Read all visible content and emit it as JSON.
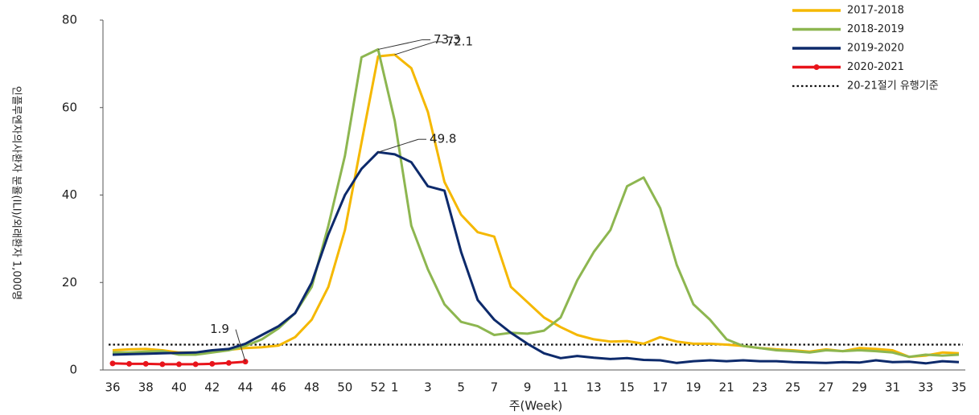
{
  "chart_data": {
    "type": "line",
    "y_label": "인플루엔자의사환자 분율(ILI)/외래환자 1,000명",
    "x_label": "주(Week)",
    "categories": [
      "36",
      null,
      "38",
      null,
      "40",
      null,
      "42",
      null,
      "44",
      null,
      "46",
      null,
      "48",
      null,
      "50",
      null,
      "52",
      "1",
      null,
      "3",
      null,
      "5",
      null,
      "7",
      null,
      "9",
      null,
      "11",
      null,
      "13",
      null,
      "15",
      null,
      "17",
      null,
      "19",
      null,
      "21",
      null,
      "23",
      null,
      "25",
      null,
      "27",
      null,
      "29",
      null,
      "31",
      null,
      "33",
      null,
      "35"
    ],
    "ylim": [
      0,
      80
    ],
    "yticks": [
      0,
      20,
      40,
      60,
      80
    ],
    "grid": false,
    "legend": "top-right",
    "series": [
      {
        "name": "2017-2018",
        "color": "#f5b800",
        "values": [
          4.5,
          4.7,
          4.8,
          4.5,
          4,
          4,
          4.3,
          4.6,
          5,
          5.2,
          5.6,
          7.5,
          11.5,
          19,
          32,
          52,
          71.7,
          72.1,
          69,
          59,
          43,
          35.5,
          31.5,
          30.5,
          19,
          15.5,
          12,
          9.8,
          8,
          7,
          6.5,
          6.6,
          6,
          7.5,
          6.5,
          6,
          6,
          5.8,
          5.5,
          5,
          4.7,
          4.5,
          4.2,
          4.7,
          4.3,
          5,
          4.8,
          4.5,
          3,
          3.3,
          4,
          3.8
        ]
      },
      {
        "name": "2018-2019",
        "color": "#8db650",
        "values": [
          4,
          4,
          4.2,
          4.3,
          3.5,
          3.5,
          4,
          4.5,
          5.5,
          7,
          9.5,
          13,
          19,
          33,
          49,
          71.5,
          73.3,
          57,
          33,
          23,
          15,
          11,
          10,
          8,
          8.5,
          8.3,
          9,
          12,
          20.5,
          27,
          32,
          42,
          44,
          37,
          24,
          15,
          11.5,
          7,
          5.5,
          5,
          4.5,
          4.3,
          4,
          4.5,
          4.3,
          4.5,
          4.3,
          4,
          3,
          3.5,
          3.3,
          3.5
        ]
      },
      {
        "name": "2019-2020",
        "color": "#0d2a6b",
        "values": [
          3.5,
          3.6,
          3.7,
          3.8,
          3.9,
          4,
          4.5,
          4.8,
          6,
          8,
          10,
          13,
          20,
          31,
          40,
          46,
          49.8,
          49.3,
          47.5,
          42,
          41,
          27,
          16,
          11.5,
          8.5,
          6,
          3.8,
          2.7,
          3.2,
          2.8,
          2.5,
          2.7,
          2.3,
          2.2,
          1.6,
          2,
          2.2,
          2,
          2.2,
          2,
          2,
          1.8,
          1.7,
          1.6,
          1.8,
          1.7,
          2.2,
          1.8,
          1.9,
          1.5,
          2,
          1.8
        ]
      },
      {
        "name": "2020-2021",
        "color": "#e8141b",
        "marker": true,
        "values": [
          1.5,
          1.4,
          1.4,
          1.3,
          1.3,
          1.3,
          1.4,
          1.6,
          1.9,
          null,
          null,
          null,
          null,
          null,
          null,
          null,
          null,
          null,
          null,
          null,
          null,
          null,
          null,
          null,
          null,
          null,
          null,
          null,
          null,
          null,
          null,
          null,
          null,
          null,
          null,
          null,
          null,
          null,
          null,
          null,
          null,
          null,
          null,
          null,
          null,
          null,
          null,
          null,
          null,
          null,
          null,
          null
        ]
      }
    ],
    "threshold": {
      "name": "20-21절기 유행기준",
      "value": 5.8,
      "color": "#111"
    },
    "annotations": [
      {
        "text": "73.3",
        "x": "52",
        "y": 73.3
      },
      {
        "text": "72.1",
        "x": "1",
        "y": 72.1
      },
      {
        "text": "49.8",
        "x": "52",
        "y": 49.8
      },
      {
        "text": "1.9",
        "x": "44",
        "y": 1.9
      }
    ]
  }
}
